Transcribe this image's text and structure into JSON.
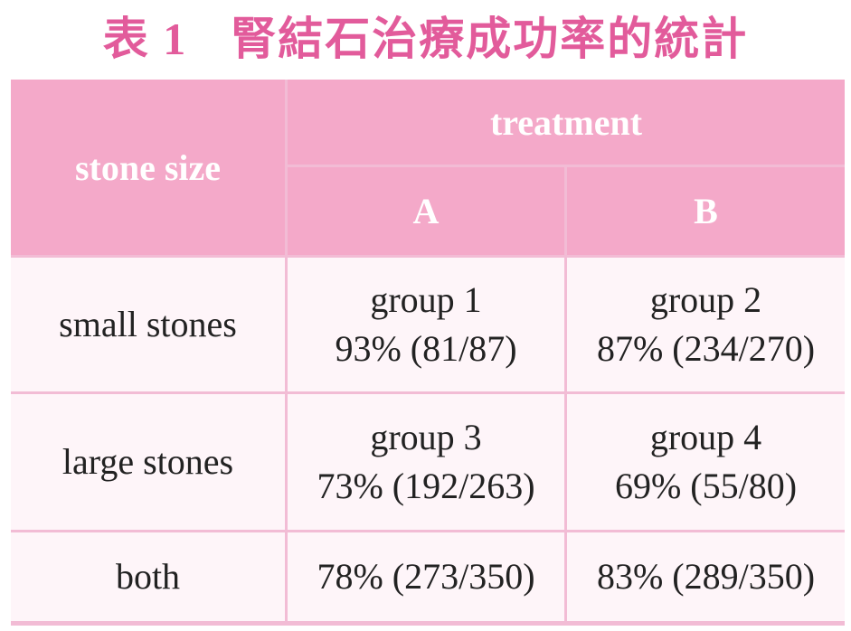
{
  "title": {
    "label": "表 1",
    "text": "腎結石治療成功率的統計"
  },
  "colors": {
    "title": "#e25b9b",
    "header_bg": "#f4a9c9",
    "body_bg": "#fef5f9",
    "grid_line": "#f2bcd5"
  },
  "table": {
    "stone_size_header": "stone size",
    "treatment_header": "treatment",
    "col_a": "A",
    "col_b": "B",
    "rows": [
      {
        "label": "small stones",
        "a_group": "group 1",
        "a_value": "93% (81/87)",
        "b_group": "group 2",
        "b_value": "87% (234/270)"
      },
      {
        "label": "large stones",
        "a_group": "group 3",
        "a_value": "73% (192/263)",
        "b_group": "group 4",
        "b_value": "69% (55/80)"
      },
      {
        "label": "both",
        "a_value": "78% (273/350)",
        "b_value": "83% (289/350)"
      }
    ]
  }
}
